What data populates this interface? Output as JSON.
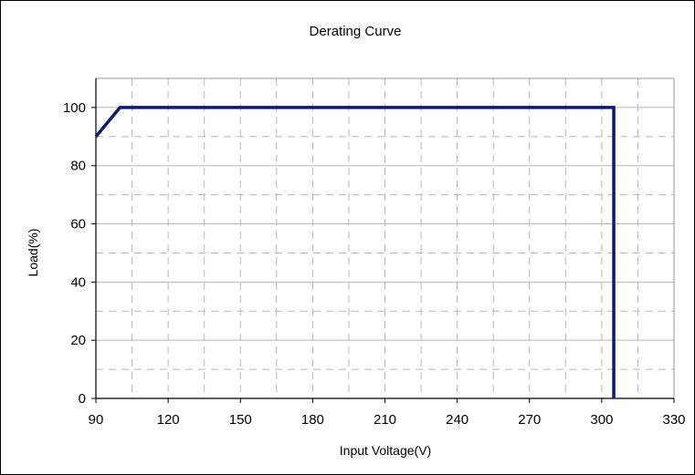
{
  "chart_data": {
    "type": "line",
    "title": "Derating Curve",
    "xlabel": "Input Voltage(V)",
    "ylabel": "Load(%)",
    "xlim": [
      90,
      330
    ],
    "ylim": [
      0,
      110
    ],
    "xticks": [
      90,
      120,
      150,
      180,
      210,
      240,
      270,
      300,
      330
    ],
    "yticks": [
      0,
      20,
      40,
      60,
      80,
      100
    ],
    "grid": true,
    "series": [
      {
        "color": "#0a1a78",
        "points": [
          [
            90,
            90
          ],
          [
            100,
            100
          ],
          [
            305,
            100
          ],
          [
            305,
            0
          ]
        ]
      }
    ]
  }
}
